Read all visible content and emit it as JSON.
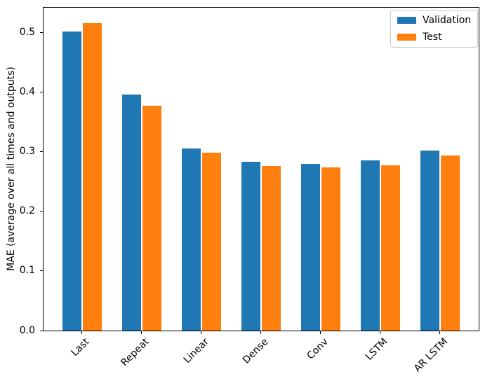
{
  "chart_data": {
    "type": "bar",
    "title": "",
    "categories": [
      "Last",
      "Repeat",
      "Linear",
      "Dense",
      "Conv",
      "LSTM",
      "AR LSTM"
    ],
    "series": [
      {
        "name": "Validation",
        "color": "#1f77b4",
        "values": [
          0.502,
          0.396,
          0.306,
          0.283,
          0.28,
          0.286,
          0.302
        ]
      },
      {
        "name": "Test",
        "color": "#ff7f0e",
        "values": [
          0.516,
          0.377,
          0.299,
          0.276,
          0.274,
          0.277,
          0.294
        ]
      }
    ],
    "xlabel": "",
    "ylabel": "MAE (average over all times and outputs)",
    "ylim": [
      0,
      0.542
    ],
    "yticks": [
      0.0,
      0.1,
      0.2,
      0.3,
      0.4,
      0.5
    ],
    "ytick_labels": [
      "0.0",
      "0.1",
      "0.2",
      "0.3",
      "0.4",
      "0.5"
    ],
    "xtick_rotation_deg": 45,
    "grid": false,
    "legend_position": "upper right",
    "axis_color": "#000000",
    "background_color": "#ffffff"
  }
}
